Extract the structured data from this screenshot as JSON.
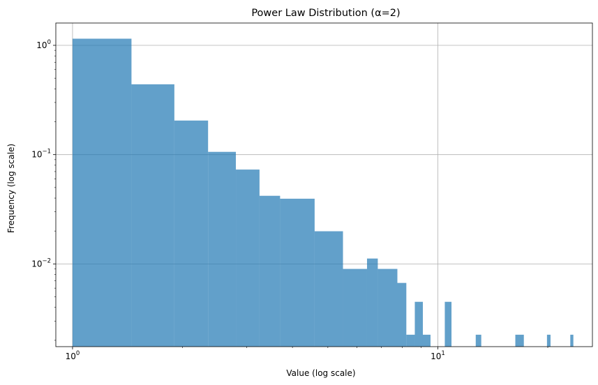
{
  "chart_data": {
    "type": "bar",
    "title": "Power Law Distribution (α=2)",
    "xlabel": "Value (log scale)",
    "ylabel": "Frequency (log scale)",
    "x_scale": "log",
    "y_scale": "log",
    "xlim": [
      0.9,
      26.5
    ],
    "ylim": [
      0.00175,
      1.6
    ],
    "grid": true,
    "bar_color": "#1f77b4",
    "bar_opacity": 0.7,
    "x_ticks": [
      {
        "value": 1,
        "base": "10",
        "exp": "0"
      },
      {
        "value": 10,
        "base": "10",
        "exp": "1"
      }
    ],
    "y_ticks": [
      {
        "value": 1,
        "base": "10",
        "exp": "0"
      },
      {
        "value": 0.1,
        "base": "10",
        "exp": "−1"
      },
      {
        "value": 0.01,
        "base": "10",
        "exp": "−2"
      }
    ],
    "bins": [
      {
        "x0": 1.0,
        "x1": 1.45,
        "y": 1.15
      },
      {
        "x0": 1.45,
        "x1": 1.9,
        "y": 0.44
      },
      {
        "x0": 1.9,
        "x1": 2.35,
        "y": 0.205
      },
      {
        "x0": 2.35,
        "x1": 2.8,
        "y": 0.106
      },
      {
        "x0": 2.8,
        "x1": 3.25,
        "y": 0.073
      },
      {
        "x0": 3.25,
        "x1": 3.7,
        "y": 0.042
      },
      {
        "x0": 3.7,
        "x1": 4.6,
        "y": 0.0395
      },
      {
        "x0": 4.6,
        "x1": 5.5,
        "y": 0.0199
      },
      {
        "x0": 5.5,
        "x1": 6.4,
        "y": 0.009
      },
      {
        "x0": 6.4,
        "x1": 6.85,
        "y": 0.0112
      },
      {
        "x0": 6.85,
        "x1": 7.75,
        "y": 0.009
      },
      {
        "x0": 7.75,
        "x1": 8.2,
        "y": 0.0067
      },
      {
        "x0": 8.2,
        "x1": 8.65,
        "y": 0.00225
      },
      {
        "x0": 8.65,
        "x1": 9.1,
        "y": 0.0045
      },
      {
        "x0": 9.1,
        "x1": 9.55,
        "y": 0.00225
      },
      {
        "x0": 10.45,
        "x1": 10.9,
        "y": 0.0045
      },
      {
        "x0": 12.7,
        "x1": 13.15,
        "y": 0.00225
      },
      {
        "x0": 16.3,
        "x1": 17.2,
        "y": 0.00225
      },
      {
        "x0": 19.9,
        "x1": 20.35,
        "y": 0.00225
      },
      {
        "x0": 23.05,
        "x1": 23.5,
        "y": 0.00225
      }
    ]
  }
}
